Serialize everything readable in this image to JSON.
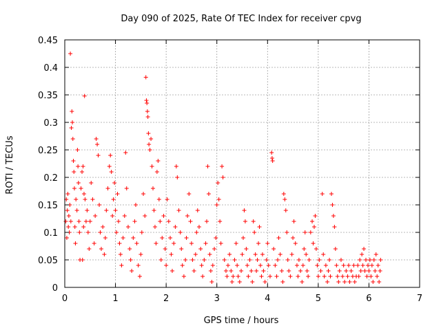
{
  "chart_data": {
    "type": "scatter",
    "title": "Day 090 of 2025, Rate Of TEC Index for receiver cpvg",
    "xlabel": "GPS time / hours",
    "ylabel": "ROTI / TECUs",
    "xlim": [
      0,
      7
    ],
    "ylim": [
      0,
      0.45
    ],
    "x_ticks": [
      "0",
      "1",
      "2",
      "3",
      "4",
      "5",
      "6",
      "7"
    ],
    "y_ticks": [
      "0",
      "0.05",
      "0.1",
      "0.15",
      "0.2",
      "0.25",
      "0.3",
      "0.35",
      "0.4",
      "0.45"
    ],
    "grid": true,
    "marker": "+",
    "color": "#ff0000",
    "series": [
      {
        "points": [
          [
            0.02,
            0.12
          ],
          [
            0.03,
            0.16
          ],
          [
            0.04,
            0.09
          ],
          [
            0.05,
            0.14
          ],
          [
            0.06,
            0.17
          ],
          [
            0.07,
            0.11
          ],
          [
            0.08,
            0.13
          ],
          [
            0.09,
            0.1
          ],
          [
            0.1,
            0.15
          ],
          [
            0.11,
            0.425
          ],
          [
            0.12,
            0.12
          ],
          [
            0.13,
            0.29
          ],
          [
            0.14,
            0.32
          ],
          [
            0.15,
            0.3
          ],
          [
            0.16,
            0.27
          ],
          [
            0.17,
            0.23
          ],
          [
            0.18,
            0.21
          ],
          [
            0.19,
            0.18
          ],
          [
            0.2,
            0.11
          ],
          [
            0.21,
            0.08
          ],
          [
            0.22,
            0.16
          ],
          [
            0.24,
            0.14
          ],
          [
            0.25,
            0.25
          ],
          [
            0.26,
            0.22
          ],
          [
            0.27,
            0.19
          ],
          [
            0.28,
            0.12
          ],
          [
            0.29,
            0.1
          ],
          [
            0.3,
            0.05
          ],
          [
            0.32,
            0.18
          ],
          [
            0.34,
            0.21
          ],
          [
            0.35,
            0.05
          ],
          [
            0.36,
            0.22
          ],
          [
            0.37,
            0.11
          ],
          [
            0.38,
            0.17
          ],
          [
            0.39,
            0.348
          ],
          [
            0.4,
            0.16
          ],
          [
            0.42,
            0.12
          ],
          [
            0.44,
            0.14
          ],
          [
            0.46,
            0.1
          ],
          [
            0.48,
            0.07
          ],
          [
            0.5,
            0.12
          ],
          [
            0.52,
            0.19
          ],
          [
            0.55,
            0.16
          ],
          [
            0.58,
            0.08
          ],
          [
            0.6,
            0.13
          ],
          [
            0.62,
            0.27
          ],
          [
            0.64,
            0.26
          ],
          [
            0.66,
            0.24
          ],
          [
            0.68,
            0.15
          ],
          [
            0.7,
            0.1
          ],
          [
            0.72,
            0.07
          ],
          [
            0.75,
            0.11
          ],
          [
            0.78,
            0.06
          ],
          [
            0.8,
            0.09
          ],
          [
            0.82,
            0.14
          ],
          [
            0.85,
            0.18
          ],
          [
            0.88,
            0.22
          ],
          [
            0.9,
            0.24
          ],
          [
            0.92,
            0.21
          ],
          [
            0.94,
            0.13
          ],
          [
            0.96,
            0.16
          ],
          [
            0.98,
            0.19
          ],
          [
            1.0,
            0.14
          ],
          [
            1.02,
            0.1
          ],
          [
            1.04,
            0.17
          ],
          [
            1.06,
            0.12
          ],
          [
            1.08,
            0.08
          ],
          [
            1.1,
            0.06
          ],
          [
            1.12,
            0.04
          ],
          [
            1.15,
            0.09
          ],
          [
            1.18,
            0.13
          ],
          [
            1.2,
            0.245
          ],
          [
            1.22,
            0.18
          ],
          [
            1.25,
            0.11
          ],
          [
            1.28,
            0.07
          ],
          [
            1.3,
            0.05
          ],
          [
            1.32,
            0.03
          ],
          [
            1.35,
            0.09
          ],
          [
            1.38,
            0.12
          ],
          [
            1.4,
            0.15
          ],
          [
            1.42,
            0.08
          ],
          [
            1.45,
            0.04
          ],
          [
            1.48,
            0.02
          ],
          [
            1.5,
            0.06
          ],
          [
            1.52,
            0.1
          ],
          [
            1.55,
            0.17
          ],
          [
            1.58,
            0.13
          ],
          [
            1.6,
            0.382
          ],
          [
            1.61,
            0.34
          ],
          [
            1.62,
            0.335
          ],
          [
            1.63,
            0.32
          ],
          [
            1.64,
            0.31
          ],
          [
            1.65,
            0.28
          ],
          [
            1.66,
            0.26
          ],
          [
            1.68,
            0.25
          ],
          [
            1.7,
            0.27
          ],
          [
            1.72,
            0.22
          ],
          [
            1.74,
            0.18
          ],
          [
            1.76,
            0.14
          ],
          [
            1.78,
            0.11
          ],
          [
            1.8,
            0.08
          ],
          [
            1.82,
            0.21
          ],
          [
            1.84,
            0.23
          ],
          [
            1.86,
            0.16
          ],
          [
            1.88,
            0.12
          ],
          [
            1.9,
            0.05
          ],
          [
            1.92,
            0.09
          ],
          [
            1.95,
            0.13
          ],
          [
            1.98,
            0.07
          ],
          [
            2.0,
            0.04
          ],
          [
            2.02,
            0.16
          ],
          [
            2.05,
            0.12
          ],
          [
            2.08,
            0.09
          ],
          [
            2.1,
            0.06
          ],
          [
            2.12,
            0.03
          ],
          [
            2.15,
            0.08
          ],
          [
            2.18,
            0.11
          ],
          [
            2.2,
            0.22
          ],
          [
            2.22,
            0.2
          ],
          [
            2.25,
            0.14
          ],
          [
            2.28,
            0.1
          ],
          [
            2.3,
            0.07
          ],
          [
            2.32,
            0.04
          ],
          [
            2.35,
            0.02
          ],
          [
            2.38,
            0.05
          ],
          [
            2.4,
            0.09
          ],
          [
            2.42,
            0.13
          ],
          [
            2.45,
            0.17
          ],
          [
            2.48,
            0.12
          ],
          [
            2.5,
            0.08
          ],
          [
            2.52,
            0.05
          ],
          [
            2.55,
            0.03
          ],
          [
            2.58,
            0.06
          ],
          [
            2.6,
            0.1
          ],
          [
            2.62,
            0.14
          ],
          [
            2.65,
            0.11
          ],
          [
            2.68,
            0.07
          ],
          [
            2.7,
            0.04
          ],
          [
            2.72,
            0.02
          ],
          [
            2.75,
            0.05
          ],
          [
            2.78,
            0.08
          ],
          [
            2.8,
            0.12
          ],
          [
            2.82,
            0.22
          ],
          [
            2.84,
            0.17
          ],
          [
            2.86,
            0.06
          ],
          [
            2.88,
            0.03
          ],
          [
            2.9,
            0.01
          ],
          [
            2.92,
            0.04
          ],
          [
            2.95,
            0.07
          ],
          [
            2.98,
            0.09
          ],
          [
            3.0,
            0.15
          ],
          [
            3.02,
            0.19
          ],
          [
            3.04,
            0.16
          ],
          [
            3.06,
            0.12
          ],
          [
            3.08,
            0.08
          ],
          [
            3.1,
            0.22
          ],
          [
            3.12,
            0.2
          ],
          [
            3.15,
            0.05
          ],
          [
            3.18,
            0.03
          ],
          [
            3.2,
            0.02
          ],
          [
            3.22,
            0.04
          ],
          [
            3.25,
            0.06
          ],
          [
            3.28,
            0.03
          ],
          [
            3.3,
            0.01
          ],
          [
            3.32,
            0.02
          ],
          [
            3.35,
            0.05
          ],
          [
            3.38,
            0.08
          ],
          [
            3.4,
            0.04
          ],
          [
            3.42,
            0.02
          ],
          [
            3.45,
            0.01
          ],
          [
            3.48,
            0.03
          ],
          [
            3.5,
            0.06
          ],
          [
            3.52,
            0.09
          ],
          [
            3.54,
            0.14
          ],
          [
            3.56,
            0.12
          ],
          [
            3.58,
            0.07
          ],
          [
            3.6,
            0.04
          ],
          [
            3.62,
            0.02
          ],
          [
            3.65,
            0.05
          ],
          [
            3.68,
            0.03
          ],
          [
            3.7,
            0.01
          ],
          [
            3.72,
            0.12
          ],
          [
            3.74,
            0.1
          ],
          [
            3.76,
            0.06
          ],
          [
            3.78,
            0.03
          ],
          [
            3.8,
            0.05
          ],
          [
            3.82,
            0.08
          ],
          [
            3.84,
            0.11
          ],
          [
            3.86,
            0.04
          ],
          [
            3.88,
            0.02
          ],
          [
            3.9,
            0.06
          ],
          [
            3.92,
            0.03
          ],
          [
            3.95,
            0.01
          ],
          [
            3.98,
            0.05
          ],
          [
            4.0,
            0.08
          ],
          [
            4.02,
            0.04
          ],
          [
            4.05,
            0.02
          ],
          [
            4.08,
            0.245
          ],
          [
            4.09,
            0.235
          ],
          [
            4.1,
            0.23
          ],
          [
            4.12,
            0.07
          ],
          [
            4.15,
            0.04
          ],
          [
            4.18,
            0.02
          ],
          [
            4.2,
            0.05
          ],
          [
            4.22,
            0.09
          ],
          [
            4.25,
            0.06
          ],
          [
            4.28,
            0.03
          ],
          [
            4.3,
            0.01
          ],
          [
            4.32,
            0.17
          ],
          [
            4.34,
            0.16
          ],
          [
            4.36,
            0.14
          ],
          [
            4.38,
            0.1
          ],
          [
            4.4,
            0.05
          ],
          [
            4.42,
            0.03
          ],
          [
            4.45,
            0.02
          ],
          [
            4.48,
            0.06
          ],
          [
            4.5,
            0.09
          ],
          [
            4.52,
            0.12
          ],
          [
            4.55,
            0.08
          ],
          [
            4.58,
            0.04
          ],
          [
            4.6,
            0.02
          ],
          [
            4.62,
            0.05
          ],
          [
            4.65,
            0.03
          ],
          [
            4.68,
            0.01
          ],
          [
            4.7,
            0.04
          ],
          [
            4.72,
            0.07
          ],
          [
            4.74,
            0.1
          ],
          [
            4.76,
            0.06
          ],
          [
            4.78,
            0.03
          ],
          [
            4.8,
            0.02
          ],
          [
            4.82,
            0.05
          ],
          [
            4.85,
            0.1
          ],
          [
            4.88,
            0.12
          ],
          [
            4.9,
            0.08
          ],
          [
            4.92,
            0.11
          ],
          [
            4.94,
            0.13
          ],
          [
            4.96,
            0.07
          ],
          [
            4.98,
            0.04
          ],
          [
            5.0,
            0.02
          ],
          [
            5.02,
            0.05
          ],
          [
            5.05,
            0.03
          ],
          [
            5.08,
            0.17
          ],
          [
            5.1,
            0.06
          ],
          [
            5.12,
            0.02
          ],
          [
            5.15,
            0.04
          ],
          [
            5.18,
            0.01
          ],
          [
            5.2,
            0.03
          ],
          [
            5.22,
            0.05
          ],
          [
            5.24,
            0.02
          ],
          [
            5.26,
            0.17
          ],
          [
            5.28,
            0.15
          ],
          [
            5.3,
            0.13
          ],
          [
            5.32,
            0.11
          ],
          [
            5.34,
            0.07
          ],
          [
            5.36,
            0.04
          ],
          [
            5.38,
            0.02
          ],
          [
            5.4,
            0.01
          ],
          [
            5.42,
            0.03
          ],
          [
            5.45,
            0.05
          ],
          [
            5.48,
            0.02
          ],
          [
            5.5,
            0.04
          ],
          [
            5.52,
            0.01
          ],
          [
            5.55,
            0.03
          ],
          [
            5.58,
            0.02
          ],
          [
            5.6,
            0.04
          ],
          [
            5.62,
            0.01
          ],
          [
            5.65,
            0.03
          ],
          [
            5.68,
            0.02
          ],
          [
            5.7,
            0.04
          ],
          [
            5.72,
            0.01
          ],
          [
            5.75,
            0.02
          ],
          [
            5.78,
            0.04
          ],
          [
            5.8,
            0.02
          ],
          [
            5.82,
            0.05
          ],
          [
            5.84,
            0.03
          ],
          [
            5.86,
            0.06
          ],
          [
            5.88,
            0.04
          ],
          [
            5.9,
            0.07
          ],
          [
            5.92,
            0.03
          ],
          [
            5.94,
            0.05
          ],
          [
            5.96,
            0.02
          ],
          [
            5.98,
            0.04
          ],
          [
            6.0,
            0.03
          ],
          [
            6.02,
            0.05
          ],
          [
            6.04,
            0.02
          ],
          [
            6.06,
            0.04
          ],
          [
            6.08,
            0.01
          ],
          [
            6.1,
            0.05
          ],
          [
            6.12,
            0.03
          ],
          [
            6.14,
            0.06
          ],
          [
            6.16,
            0.02
          ],
          [
            6.18,
            0.04
          ],
          [
            6.2,
            0.01
          ],
          [
            6.22,
            0.03
          ],
          [
            6.23,
            0.05
          ]
        ]
      }
    ]
  }
}
